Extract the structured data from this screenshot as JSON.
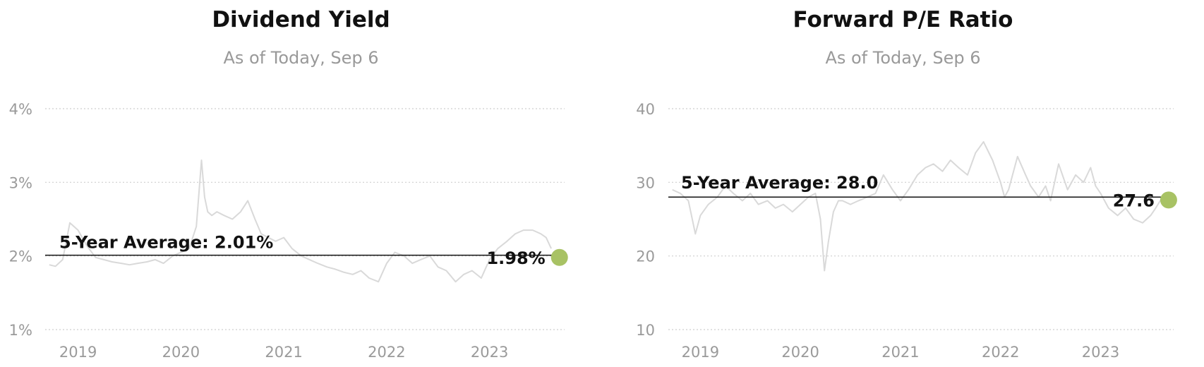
{
  "chart_data": [
    {
      "type": "line",
      "title": "Dividend Yield",
      "subtitle": "As of Today, Sep 6",
      "ylim": [
        1,
        4
      ],
      "yticks": [
        1,
        2,
        3,
        4
      ],
      "ytick_labels": [
        "1%",
        "2%",
        "3%",
        "4%"
      ],
      "xlim": [
        2018.68,
        2023.73
      ],
      "xticks": [
        2019,
        2020,
        2021,
        2022,
        2023
      ],
      "xtick_labels": [
        "2019",
        "2020",
        "2021",
        "2022",
        "2023"
      ],
      "grid": true,
      "series": [
        {
          "x": [
            2018.72,
            2018.78,
            2018.85,
            2018.92,
            2019.0,
            2019.08,
            2019.17,
            2019.25,
            2019.33,
            2019.42,
            2019.5,
            2019.58,
            2019.67,
            2019.75,
            2019.83,
            2019.92,
            2020.0,
            2020.08,
            2020.15,
            2020.2,
            2020.23,
            2020.26,
            2020.3,
            2020.35,
            2020.42,
            2020.5,
            2020.58,
            2020.65,
            2020.72,
            2020.78,
            2020.85,
            2020.92,
            2021.0,
            2021.08,
            2021.17,
            2021.25,
            2021.33,
            2021.42,
            2021.5,
            2021.58,
            2021.67,
            2021.75,
            2021.83,
            2021.92,
            2022.0,
            2022.08,
            2022.17,
            2022.25,
            2022.33,
            2022.42,
            2022.5,
            2022.58,
            2022.67,
            2022.75,
            2022.83,
            2022.92,
            2023.0,
            2023.08,
            2023.17,
            2023.25,
            2023.33,
            2023.42,
            2023.5,
            2023.55,
            2023.6
          ],
          "values": [
            1.88,
            1.86,
            1.95,
            2.45,
            2.35,
            2.15,
            1.98,
            1.95,
            1.92,
            1.9,
            1.88,
            1.9,
            1.92,
            1.95,
            1.9,
            2.0,
            2.05,
            2.1,
            2.4,
            3.3,
            2.8,
            2.6,
            2.55,
            2.6,
            2.55,
            2.5,
            2.6,
            2.75,
            2.5,
            2.3,
            2.25,
            2.2,
            2.25,
            2.1,
            2.0,
            1.95,
            1.9,
            1.85,
            1.82,
            1.78,
            1.75,
            1.8,
            1.7,
            1.65,
            1.9,
            2.05,
            2.0,
            1.9,
            1.95,
            2.0,
            1.85,
            1.8,
            1.65,
            1.75,
            1.8,
            1.7,
            1.95,
            2.1,
            2.2,
            2.3,
            2.35,
            2.35,
            2.3,
            2.25,
            2.1
          ]
        }
      ],
      "average": {
        "label": "5-Year Average: 2.01%",
        "value": 2.01
      },
      "current": {
        "label": "1.98%",
        "value": 1.98,
        "x": 2023.68
      }
    },
    {
      "type": "line",
      "title": "Forward P/E Ratio",
      "subtitle": "As of Today, Sep 6",
      "ylim": [
        10,
        40
      ],
      "yticks": [
        10,
        20,
        30,
        40
      ],
      "ytick_labels": [
        "10",
        "20",
        "30",
        "40"
      ],
      "xlim": [
        2018.68,
        2023.73
      ],
      "xticks": [
        2019,
        2020,
        2021,
        2022,
        2023
      ],
      "xtick_labels": [
        "2019",
        "2020",
        "2021",
        "2022",
        "2023"
      ],
      "grid": true,
      "series": [
        {
          "x": [
            2018.72,
            2018.8,
            2018.88,
            2018.95,
            2019.0,
            2019.08,
            2019.17,
            2019.25,
            2019.33,
            2019.42,
            2019.5,
            2019.58,
            2019.67,
            2019.75,
            2019.83,
            2019.92,
            2020.0,
            2020.08,
            2020.15,
            2020.2,
            2020.24,
            2020.28,
            2020.33,
            2020.38,
            2020.42,
            2020.5,
            2020.58,
            2020.67,
            2020.75,
            2020.83,
            2020.92,
            2021.0,
            2021.08,
            2021.17,
            2021.25,
            2021.33,
            2021.42,
            2021.5,
            2021.58,
            2021.67,
            2021.75,
            2021.83,
            2021.92,
            2022.0,
            2022.04,
            2022.08,
            2022.17,
            2022.25,
            2022.3,
            2022.38,
            2022.45,
            2022.5,
            2022.58,
            2022.67,
            2022.75,
            2022.83,
            2022.9,
            2022.95,
            2023.0,
            2023.08,
            2023.17,
            2023.25,
            2023.33,
            2023.42,
            2023.5,
            2023.55,
            2023.6
          ],
          "values": [
            29.0,
            28.5,
            27.5,
            23.0,
            25.5,
            27.0,
            28.0,
            29.5,
            28.5,
            27.5,
            28.5,
            27.0,
            27.5,
            26.5,
            27.0,
            26.0,
            27.0,
            28.0,
            28.5,
            25.0,
            18.0,
            22.0,
            26.0,
            27.5,
            27.5,
            27.0,
            27.5,
            28.0,
            28.5,
            31.0,
            29.0,
            27.5,
            29.0,
            31.0,
            32.0,
            32.5,
            31.5,
            33.0,
            32.0,
            31.0,
            34.0,
            35.5,
            33.0,
            30.0,
            28.0,
            29.0,
            33.5,
            31.0,
            29.5,
            28.0,
            29.5,
            27.5,
            32.5,
            29.0,
            31.0,
            30.0,
            32.0,
            29.5,
            28.5,
            26.5,
            25.5,
            26.5,
            25.0,
            24.5,
            25.5,
            26.5,
            27.6
          ]
        }
      ],
      "average": {
        "label": "5-Year Average: 28.0",
        "value": 28.0
      },
      "current": {
        "label": "27.6",
        "value": 27.6,
        "x": 2023.68
      }
    }
  ]
}
